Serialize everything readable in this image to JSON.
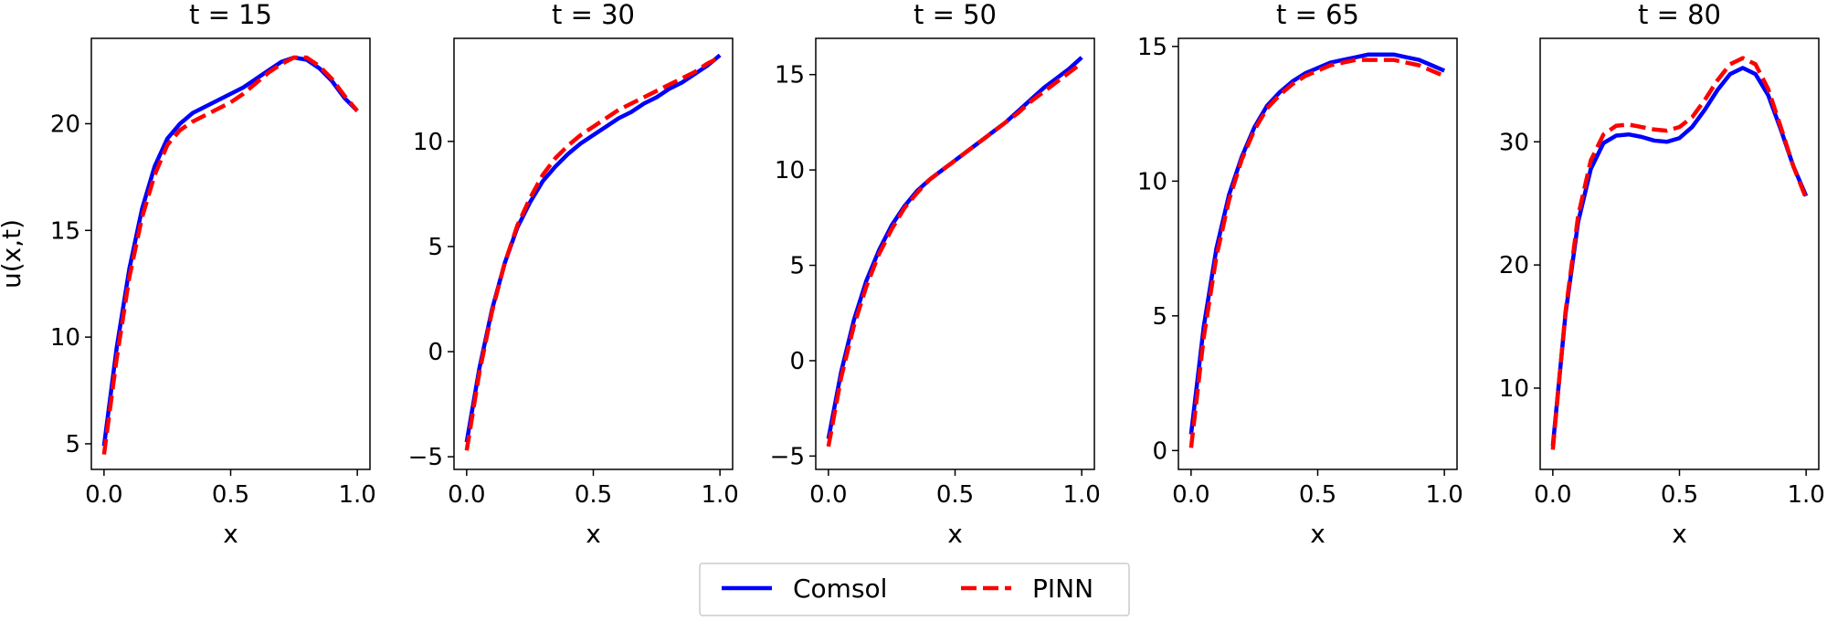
{
  "chart_data": [
    {
      "type": "line",
      "title": "t = 15",
      "xlabel": "x",
      "ylabel": "u(x,t)",
      "xlim": [
        -0.05,
        1.05
      ],
      "ylim": [
        3.8,
        24.0
      ],
      "xticks": [
        "0.0",
        "0.5",
        "1.0"
      ],
      "yticks": [
        "5",
        "10",
        "15",
        "20"
      ],
      "grid": false,
      "series": [
        {
          "name": "Comsol",
          "color": "#0000ff",
          "style": "solid",
          "x": [
            0.0,
            0.05,
            0.1,
            0.15,
            0.2,
            0.25,
            0.3,
            0.35,
            0.4,
            0.45,
            0.5,
            0.55,
            0.6,
            0.65,
            0.7,
            0.75,
            0.8,
            0.85,
            0.9,
            0.95,
            1.0
          ],
          "y": [
            4.9,
            9.5,
            13.2,
            16.0,
            18.0,
            19.3,
            20.0,
            20.5,
            20.8,
            21.1,
            21.4,
            21.7,
            22.1,
            22.5,
            22.9,
            23.1,
            23.0,
            22.6,
            22.0,
            21.2,
            20.6
          ]
        },
        {
          "name": "PINN",
          "color": "#ff0000",
          "style": "dashed",
          "x": [
            0.0,
            0.05,
            0.1,
            0.15,
            0.2,
            0.25,
            0.3,
            0.35,
            0.4,
            0.45,
            0.5,
            0.55,
            0.6,
            0.65,
            0.7,
            0.75,
            0.8,
            0.85,
            0.9,
            0.95,
            1.0
          ],
          "y": [
            4.5,
            9.0,
            12.8,
            15.6,
            17.6,
            19.0,
            19.7,
            20.1,
            20.4,
            20.7,
            21.0,
            21.4,
            21.9,
            22.4,
            22.8,
            23.1,
            23.1,
            22.7,
            22.1,
            21.3,
            20.6
          ]
        }
      ]
    },
    {
      "type": "line",
      "title": "t = 30",
      "xlabel": "x",
      "ylabel": "",
      "xlim": [
        -0.05,
        1.05
      ],
      "ylim": [
        -5.6,
        14.9
      ],
      "xticks": [
        "0.0",
        "0.5",
        "1.0"
      ],
      "yticks": [
        "-5",
        "0",
        "5",
        "10"
      ],
      "grid": false,
      "series": [
        {
          "name": "Comsol",
          "color": "#0000ff",
          "style": "solid",
          "x": [
            0.0,
            0.05,
            0.1,
            0.15,
            0.2,
            0.25,
            0.3,
            0.35,
            0.4,
            0.45,
            0.5,
            0.55,
            0.6,
            0.65,
            0.7,
            0.75,
            0.8,
            0.85,
            0.9,
            0.95,
            1.0
          ],
          "y": [
            -4.3,
            -0.8,
            2.0,
            4.2,
            5.9,
            7.1,
            8.1,
            8.8,
            9.4,
            9.9,
            10.3,
            10.7,
            11.1,
            11.4,
            11.8,
            12.1,
            12.5,
            12.8,
            13.2,
            13.6,
            14.1
          ]
        },
        {
          "name": "PINN",
          "color": "#ff0000",
          "style": "dashed",
          "x": [
            0.0,
            0.05,
            0.1,
            0.15,
            0.2,
            0.25,
            0.3,
            0.35,
            0.4,
            0.45,
            0.5,
            0.55,
            0.6,
            0.65,
            0.7,
            0.75,
            0.8,
            0.85,
            0.9,
            0.95,
            1.0
          ],
          "y": [
            -4.7,
            -1.0,
            1.9,
            4.2,
            6.0,
            7.3,
            8.4,
            9.2,
            9.8,
            10.3,
            10.7,
            11.1,
            11.5,
            11.8,
            12.1,
            12.4,
            12.7,
            13.0,
            13.3,
            13.7,
            14.0
          ]
        }
      ]
    },
    {
      "type": "line",
      "title": "t = 50",
      "xlabel": "x",
      "ylabel": "",
      "xlim": [
        -0.05,
        1.05
      ],
      "ylim": [
        -5.7,
        16.9
      ],
      "xticks": [
        "0.0",
        "0.5",
        "1.0"
      ],
      "yticks": [
        "-5",
        "0",
        "5",
        "10",
        "15"
      ],
      "grid": false,
      "series": [
        {
          "name": "Comsol",
          "color": "#0000ff",
          "style": "solid",
          "x": [
            0.0,
            0.05,
            0.1,
            0.15,
            0.2,
            0.25,
            0.3,
            0.35,
            0.4,
            0.45,
            0.5,
            0.55,
            0.6,
            0.65,
            0.7,
            0.75,
            0.8,
            0.85,
            0.9,
            0.95,
            1.0
          ],
          "y": [
            -4.1,
            -0.6,
            2.1,
            4.2,
            5.8,
            7.1,
            8.1,
            8.9,
            9.5,
            10.0,
            10.5,
            11.0,
            11.5,
            12.0,
            12.5,
            13.1,
            13.7,
            14.3,
            14.8,
            15.3,
            15.9
          ]
        },
        {
          "name": "PINN",
          "color": "#ff0000",
          "style": "dashed",
          "x": [
            0.0,
            0.05,
            0.1,
            0.15,
            0.2,
            0.25,
            0.3,
            0.35,
            0.4,
            0.45,
            0.5,
            0.55,
            0.6,
            0.65,
            0.7,
            0.75,
            0.8,
            0.85,
            0.9,
            0.95,
            1.0
          ],
          "y": [
            -4.5,
            -0.9,
            1.8,
            3.9,
            5.6,
            6.9,
            8.0,
            8.8,
            9.5,
            10.0,
            10.5,
            11.0,
            11.5,
            12.0,
            12.5,
            13.0,
            13.6,
            14.1,
            14.6,
            15.1,
            15.6
          ]
        }
      ]
    },
    {
      "type": "line",
      "title": "t = 65",
      "xlabel": "x",
      "ylabel": "",
      "xlim": [
        -0.05,
        1.05
      ],
      "ylim": [
        -0.7,
        15.3
      ],
      "xticks": [
        "0.0",
        "0.5",
        "1.0"
      ],
      "yticks": [
        "0",
        "5",
        "10",
        "15"
      ],
      "grid": false,
      "series": [
        {
          "name": "Comsol",
          "color": "#0000ff",
          "style": "solid",
          "x": [
            0.0,
            0.05,
            0.1,
            0.15,
            0.2,
            0.25,
            0.3,
            0.35,
            0.4,
            0.45,
            0.5,
            0.55,
            0.6,
            0.65,
            0.7,
            0.75,
            0.8,
            0.85,
            0.9,
            0.95,
            1.0
          ],
          "y": [
            0.6,
            4.6,
            7.5,
            9.5,
            10.9,
            12.0,
            12.8,
            13.3,
            13.7,
            14.0,
            14.2,
            14.4,
            14.5,
            14.6,
            14.7,
            14.7,
            14.7,
            14.6,
            14.5,
            14.3,
            14.1
          ]
        },
        {
          "name": "PINN",
          "color": "#ff0000",
          "style": "dashed",
          "x": [
            0.0,
            0.05,
            0.1,
            0.15,
            0.2,
            0.25,
            0.3,
            0.35,
            0.4,
            0.45,
            0.5,
            0.55,
            0.6,
            0.65,
            0.7,
            0.75,
            0.8,
            0.85,
            0.9,
            0.95,
            1.0
          ],
          "y": [
            0.1,
            4.2,
            7.2,
            9.3,
            10.8,
            11.9,
            12.7,
            13.2,
            13.6,
            13.9,
            14.1,
            14.3,
            14.4,
            14.5,
            14.5,
            14.5,
            14.5,
            14.4,
            14.3,
            14.1,
            13.9
          ]
        }
      ]
    },
    {
      "type": "line",
      "title": "t = 80",
      "xlabel": "x",
      "ylabel": "",
      "xlim": [
        -0.05,
        1.05
      ],
      "ylim": [
        3.4,
        38.4
      ],
      "xticks": [
        "0.0",
        "0.5",
        "1.0"
      ],
      "yticks": [
        "10",
        "20",
        "30"
      ],
      "grid": false,
      "series": [
        {
          "name": "Comsol",
          "color": "#0000ff",
          "style": "solid",
          "x": [
            0.0,
            0.05,
            0.1,
            0.15,
            0.2,
            0.25,
            0.3,
            0.35,
            0.4,
            0.45,
            0.5,
            0.55,
            0.6,
            0.65,
            0.7,
            0.75,
            0.8,
            0.85,
            0.9,
            0.95,
            1.0
          ],
          "y": [
            5.3,
            16.0,
            23.5,
            27.8,
            29.9,
            30.5,
            30.6,
            30.4,
            30.1,
            30.0,
            30.3,
            31.2,
            32.6,
            34.2,
            35.5,
            36.0,
            35.5,
            33.8,
            31.0,
            28.0,
            25.6
          ]
        },
        {
          "name": "PINN",
          "color": "#ff0000",
          "style": "dashed",
          "x": [
            0.0,
            0.05,
            0.1,
            0.15,
            0.2,
            0.25,
            0.3,
            0.35,
            0.4,
            0.45,
            0.5,
            0.55,
            0.6,
            0.65,
            0.7,
            0.75,
            0.8,
            0.85,
            0.9,
            0.95,
            1.0
          ],
          "y": [
            5.0,
            16.2,
            24.0,
            28.5,
            30.6,
            31.3,
            31.4,
            31.2,
            31.0,
            30.9,
            31.2,
            32.0,
            33.4,
            35.0,
            36.3,
            36.8,
            36.3,
            34.3,
            31.2,
            28.0,
            25.4
          ]
        }
      ]
    }
  ],
  "legend": {
    "placement": "bottom-center",
    "entries": [
      {
        "label": "Comsol",
        "color": "#0000ff",
        "style": "solid"
      },
      {
        "label": "PINN",
        "color": "#ff0000",
        "style": "dashed"
      }
    ]
  }
}
